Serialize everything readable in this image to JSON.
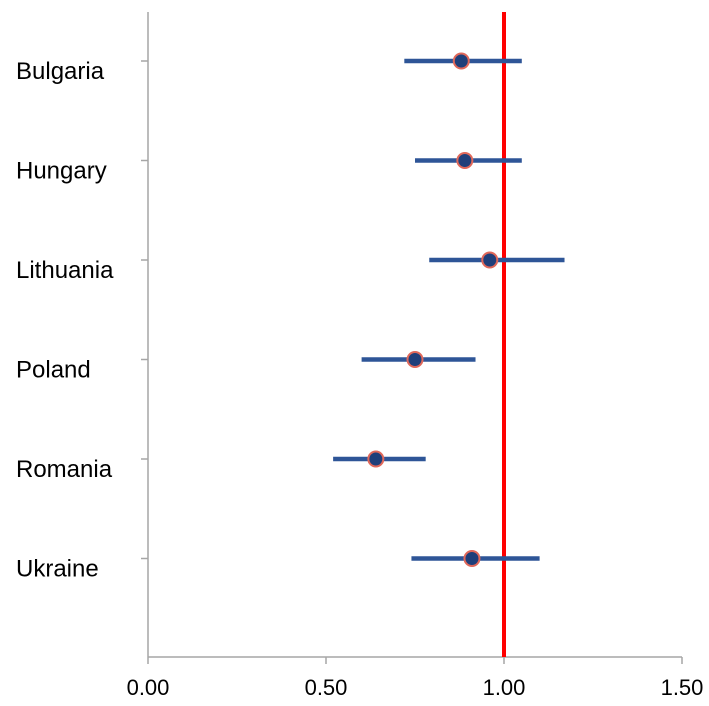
{
  "chart_data": {
    "type": "scatter",
    "subtype": "forest-plot",
    "categories": [
      "Bulgaria",
      "Hungary",
      "Lithuania",
      "Poland",
      "Romania",
      "Ukraine"
    ],
    "estimates": [
      0.88,
      0.89,
      0.96,
      0.75,
      0.64,
      0.91
    ],
    "ci_lower": [
      0.72,
      0.75,
      0.79,
      0.6,
      0.52,
      0.74
    ],
    "ci_upper": [
      1.05,
      1.05,
      1.17,
      0.92,
      0.78,
      1.1
    ],
    "xlim": [
      0.0,
      1.5
    ],
    "x_ticks": [
      0.0,
      0.5,
      1.0,
      1.5
    ],
    "x_tick_labels": [
      "0.00",
      "0.50",
      "1.00",
      "1.50"
    ],
    "reference_line": 1.0,
    "grid": false,
    "colors": {
      "interval": "#2e5597",
      "marker_fill": "#1f3f7a",
      "marker_edge": "#e0685a",
      "reference_line": "#ff0000",
      "axis": "#a6a6a6"
    }
  }
}
